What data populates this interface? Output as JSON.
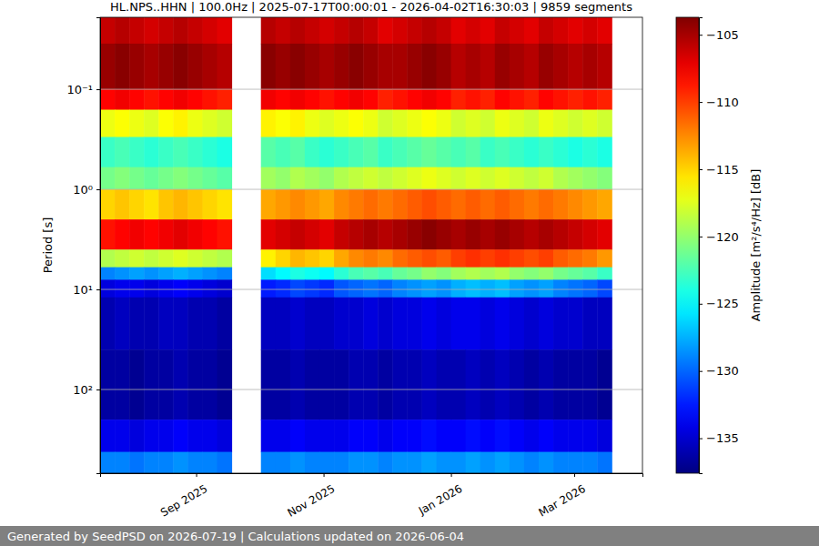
{
  "chart_data": {
    "type": "heatmap",
    "title": "HL.NPS..HHN | 100.0Hz | 2025-07-17T00:00:01 - 2026-04-02T16:30:03 | 9859 segments",
    "y_label": "Period [s]",
    "footer": "Generated by SeedPSD on 2026-07-19 | Calculations updated on 2026-06-04",
    "log": "y",
    "grid": true,
    "color": "jet",
    "xlim": [
      "2025-07-17T00:00:01",
      "2026-04-02T16:30:03"
    ],
    "ylim": [
      0.0191,
      686
    ],
    "xticks": [
      {
        "value": "2025-09-01",
        "label": "Sep 2025"
      },
      {
        "value": "2025-11-01",
        "label": "Nov 2025"
      },
      {
        "value": "2026-01-01",
        "label": "Jan 2026"
      },
      {
        "value": "2026-03-01",
        "label": "Mar 2026"
      }
    ],
    "yticks": [
      {
        "value": 0.1,
        "label": "10⁻¹"
      },
      {
        "value": 1,
        "label": "10⁰"
      },
      {
        "value": 10,
        "label": "10¹"
      },
      {
        "value": 100,
        "label": "10²"
      }
    ],
    "x_bins": [
      "2025-07-17",
      "2025-07-24",
      "2025-07-31",
      "2025-08-07",
      "2025-08-14",
      "2025-08-21",
      "2025-08-28",
      "2025-09-04",
      "2025-09-11",
      "2025-09-18",
      "2025-09-25",
      "2025-10-02",
      "2025-10-09",
      "2025-10-16",
      "2025-10-23",
      "2025-10-30",
      "2025-11-06",
      "2025-11-13",
      "2025-11-20",
      "2025-11-27",
      "2025-12-04",
      "2025-12-11",
      "2025-12-18",
      "2025-12-25",
      "2026-01-01",
      "2026-01-08",
      "2026-01-15",
      "2026-01-22",
      "2026-01-29",
      "2026-02-05",
      "2026-02-12",
      "2026-02-19",
      "2026-02-26",
      "2026-03-05",
      "2026-03-12",
      "2026-03-19",
      "2026-03-26",
      "2026-04-02"
    ],
    "y_bins": [
      0.0191,
      0.035,
      0.1,
      0.16,
      0.3,
      0.6,
      1,
      2,
      4,
      6,
      8,
      12,
      40,
      200,
      420,
      686
    ],
    "values": [
      [
        -106,
        -105.5,
        -106,
        -106.5,
        -106,
        -105.5,
        -106,
        -106.5,
        -107,
        null,
        null,
        -105.5,
        -106,
        -105.5,
        -106,
        -106.5,
        -106,
        -105.5,
        -106,
        -107,
        -106.5,
        -106,
        -105.5,
        -106,
        -107,
        -106.5,
        -107,
        -106,
        -106.5,
        -107,
        -106,
        -106.5,
        -107,
        -106.5,
        -107,
        null,
        null
      ],
      [
        -104.5,
        -104,
        -104.5,
        -105,
        -104.5,
        -104,
        -104.5,
        -105,
        -105.5,
        null,
        null,
        -104,
        -104.5,
        -104,
        -104.5,
        -105,
        -104.5,
        -104,
        -104.5,
        -105,
        -105,
        -104.5,
        -104,
        -104.5,
        -105.5,
        -105,
        -105.5,
        -104.5,
        -105,
        -105.5,
        -104.5,
        -105,
        -105.5,
        -105,
        -105.5,
        null,
        null
      ],
      [
        -108,
        -107.5,
        -108,
        -108.5,
        -108,
        -107.5,
        -108,
        -108.5,
        -109,
        null,
        null,
        -107.5,
        -108,
        -107.5,
        -108,
        -108.5,
        -108,
        -107.5,
        -108,
        -109,
        -108.5,
        -108,
        -107.5,
        -108,
        -109,
        -108.5,
        -109,
        -108,
        -108.5,
        -109,
        -108,
        -108.5,
        -109,
        -108.5,
        -109,
        null,
        null
      ],
      [
        -117,
        -116.5,
        -117,
        -117.5,
        -116.5,
        -116,
        -117,
        -117.5,
        -118,
        null,
        null,
        -116,
        -116.5,
        -116,
        -117,
        -117.5,
        -117,
        -116.5,
        -117,
        -118,
        -117.5,
        -117,
        -116.5,
        -117,
        -118,
        -117.5,
        -118,
        -117,
        -117.5,
        -118,
        -117,
        -117.5,
        -118,
        -117.5,
        -118,
        null,
        null
      ],
      [
        -123,
        -122.5,
        -123,
        -123.5,
        -123,
        -122.5,
        -123,
        -123.5,
        -124,
        null,
        null,
        -122,
        -122.5,
        -122,
        -123,
        -123.5,
        -123,
        -122.5,
        -122,
        -123,
        -122.5,
        -122,
        -121.5,
        -122,
        -122.5,
        -122,
        -123,
        -122.5,
        -123,
        -123.5,
        -123,
        -123.5,
        -124,
        -123.5,
        -124,
        null,
        null
      ],
      [
        -121,
        -120.5,
        -121,
        -121.5,
        -121,
        -120.5,
        -121,
        -121.5,
        -122,
        null,
        null,
        -119.5,
        -120,
        -119,
        -119.5,
        -120,
        -119,
        -118.5,
        -118,
        -118.5,
        -118,
        -117.5,
        -117,
        -117.5,
        -118,
        -117.5,
        -118,
        -117.5,
        -118,
        -118.5,
        -118,
        -119,
        -119.5,
        -120,
        -120.5,
        null,
        null
      ],
      [
        -115,
        -114.5,
        -115,
        -115.5,
        -114.5,
        -114,
        -114.5,
        -115,
        -115.5,
        null,
        null,
        -113.5,
        -113,
        -112.5,
        -113,
        -113.5,
        -112.5,
        -112,
        -111.5,
        -112,
        -111.5,
        -111,
        -110.5,
        -111,
        -111.5,
        -111,
        -111.5,
        -111,
        -111.5,
        -112,
        -111.5,
        -112,
        -112.5,
        -113,
        -113.5,
        null,
        null
      ],
      [
        -108.5,
        -108,
        -107.5,
        -108,
        -107.5,
        -107,
        -107.5,
        -108,
        -108.5,
        null,
        null,
        -107,
        -106.5,
        -106,
        -106.5,
        -107,
        -106,
        -105.5,
        -105,
        -105.5,
        -105,
        -104.5,
        -104,
        -104.5,
        -105,
        -104.5,
        -105,
        -104.5,
        -105,
        -105.5,
        -105,
        -105.5,
        -106,
        -106.5,
        -107,
        null,
        null
      ],
      [
        -119,
        -118.5,
        -118,
        -118.5,
        -118,
        -117.5,
        -118,
        -118.5,
        -119,
        null,
        null,
        -116,
        -115,
        -114,
        -114.5,
        -115,
        -113.5,
        -112.5,
        -112,
        -112.5,
        -111.5,
        -111,
        -110.5,
        -111,
        -110,
        -109.5,
        -110,
        -109.5,
        -110,
        -110.5,
        -110,
        -111,
        -111.5,
        -112,
        -113,
        null,
        null
      ],
      [
        -129,
        -128.5,
        -128,
        -128.5,
        -128,
        -127.5,
        -128,
        -128.5,
        -129,
        null,
        null,
        -126,
        -125,
        -124,
        -124.5,
        -125,
        -123.5,
        -122.5,
        -122,
        -122.5,
        -121.5,
        -121,
        -120,
        -120.5,
        -119.5,
        -119,
        -119.5,
        -119,
        -120,
        -120.5,
        -120,
        -121,
        -121.5,
        -122,
        -123,
        null,
        null
      ],
      [
        -134.5,
        -134,
        -134,
        -134.5,
        -134,
        -133.5,
        -134,
        -134.5,
        -135,
        null,
        null,
        -132.5,
        -132,
        -131,
        -131.5,
        -132,
        -130.5,
        -130,
        -129.5,
        -130,
        -129,
        -128.5,
        -128,
        -128.5,
        -127.5,
        -127,
        -127.5,
        -127,
        -128,
        -128.5,
        -128,
        -129,
        -129.5,
        -130,
        -131,
        null,
        null
      ],
      [
        -136,
        -135.5,
        -136,
        -136,
        -135.5,
        -135.5,
        -136,
        -136,
        -136.5,
        null,
        null,
        -135.5,
        -135.5,
        -135,
        -135.5,
        -135.5,
        -135,
        -135,
        -134.5,
        -135,
        -134.5,
        -134.5,
        -134,
        -134.5,
        -134,
        -134,
        -134.5,
        -134,
        -134.5,
        -135,
        -134.5,
        -135,
        -135,
        -135.5,
        -135.5,
        null,
        null
      ],
      [
        -136.5,
        -136.5,
        -137,
        -136.5,
        -136.5,
        -136,
        -136.5,
        -136.5,
        -137,
        null,
        null,
        -136.5,
        -136.5,
        -136,
        -136.5,
        -136.5,
        -136.5,
        -136,
        -136,
        -136.5,
        -136,
        -136,
        -135.5,
        -136,
        -136,
        -135.5,
        -136,
        -135.5,
        -136,
        -136.5,
        -136,
        -136.5,
        -136.5,
        -136.5,
        -137,
        null,
        null
      ],
      [
        -134,
        -134,
        -134.5,
        -134,
        -134,
        -133.5,
        -134,
        -134,
        -134.5,
        null,
        null,
        -134,
        -134,
        -133.5,
        -134,
        -134,
        -134,
        -133.5,
        -133.5,
        -134,
        -133.5,
        -133.5,
        -133,
        -133.5,
        -133.5,
        -133,
        -133.5,
        -133,
        -133.5,
        -134,
        -133.5,
        -134,
        -134,
        -134,
        -134.5,
        null,
        null
      ],
      [
        -129,
        -129,
        -129.5,
        -129,
        -129,
        -128.5,
        -129,
        -129,
        -129.5,
        null,
        null,
        -129,
        -129,
        -128.5,
        -129,
        -129,
        -129,
        -128.5,
        -128.5,
        -129,
        -128.5,
        -128.5,
        -128,
        -128.5,
        -128.5,
        -128,
        -128.5,
        -128,
        -128.5,
        -129,
        -128.5,
        -129,
        -129,
        -129,
        -129.5,
        null,
        null
      ]
    ],
    "colorbar": {
      "label": "Amplitude [m²/s⁴/Hz] [dB]",
      "range": [
        -137.6,
        -103.7
      ],
      "ticks": [
        {
          "value": -135,
          "label": "−135"
        },
        {
          "value": -130,
          "label": "−130"
        },
        {
          "value": -125,
          "label": "−125"
        },
        {
          "value": -120,
          "label": "−120"
        },
        {
          "value": -115,
          "label": "−115"
        },
        {
          "value": -110,
          "label": "−110"
        },
        {
          "value": -105,
          "label": "−105"
        }
      ]
    }
  }
}
